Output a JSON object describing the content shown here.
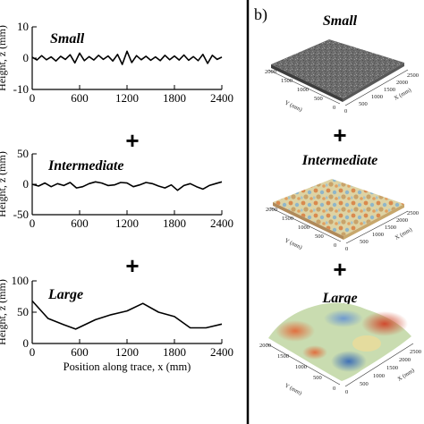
{
  "panel_label": "b)",
  "operator": "+",
  "chart_data": [
    {
      "type": "line",
      "title": "Small",
      "xlabel": "",
      "ylabel": "Height, z (mm)",
      "xlim": [
        0,
        2400
      ],
      "ylim": [
        -10,
        10
      ],
      "xticks": [
        "0",
        "600",
        "1200",
        "1800",
        "2400"
      ],
      "yticks": [
        "-10",
        "0",
        "10"
      ],
      "x": [
        0,
        60,
        120,
        180,
        240,
        300,
        360,
        420,
        480,
        540,
        600,
        660,
        720,
        780,
        840,
        900,
        960,
        1020,
        1080,
        1140,
        1200,
        1260,
        1320,
        1380,
        1440,
        1500,
        1560,
        1620,
        1680,
        1740,
        1800,
        1860,
        1920,
        1980,
        2040,
        2100,
        2160,
        2220,
        2280,
        2340,
        2400
      ],
      "y": [
        0.3,
        -0.6,
        0.8,
        -0.5,
        0.4,
        -0.9,
        0.6,
        -0.4,
        1.1,
        -1.5,
        1.6,
        -0.8,
        0.5,
        -0.6,
        0.9,
        -0.4,
        0.7,
        -0.9,
        1.2,
        -2.0,
        2.2,
        -1.4,
        0.8,
        -0.5,
        0.6,
        -0.7,
        0.4,
        -0.8,
        0.9,
        -0.5,
        0.7,
        -0.6,
        1.0,
        -0.7,
        0.5,
        -0.8,
        1.2,
        -1.7,
        0.9,
        -0.4,
        0.3
      ]
    },
    {
      "type": "line",
      "title": "Intermediate",
      "xlabel": "",
      "ylabel": "Height, z (mm)",
      "xlim": [
        0,
        2400
      ],
      "ylim": [
        -50,
        50
      ],
      "xticks": [
        "0",
        "600",
        "1200",
        "1800",
        "2400"
      ],
      "yticks": [
        "-50",
        "0",
        "50"
      ],
      "x": [
        0,
        80,
        160,
        240,
        320,
        400,
        480,
        560,
        640,
        720,
        800,
        880,
        960,
        1040,
        1120,
        1200,
        1280,
        1360,
        1440,
        1520,
        1600,
        1680,
        1760,
        1840,
        1920,
        2000,
        2080,
        2160,
        2240,
        2320,
        2400
      ],
      "y": [
        0,
        -3,
        2,
        -4,
        1,
        -2,
        3,
        -6,
        -4,
        1,
        4,
        2,
        -2,
        -1,
        3,
        2,
        -4,
        -1,
        3,
        1,
        -3,
        -6,
        -1,
        -10,
        -2,
        1,
        -4,
        -8,
        -2,
        1,
        4
      ]
    },
    {
      "type": "line",
      "title": "Large",
      "xlabel": "Position along trace, x (mm)",
      "ylabel": "Height, z (mm)",
      "xlim": [
        0,
        2400
      ],
      "ylim": [
        0,
        100
      ],
      "xticks": [
        "0",
        "600",
        "1200",
        "1800",
        "2400"
      ],
      "yticks": [
        "0",
        "50",
        "100"
      ],
      "x": [
        0,
        200,
        400,
        550,
        800,
        1000,
        1200,
        1400,
        1600,
        1800,
        2000,
        2200,
        2400
      ],
      "y": [
        68,
        40,
        30,
        23,
        38,
        46,
        52,
        64,
        50,
        43,
        25,
        25,
        31
      ]
    },
    {
      "type": "surface",
      "title": "Small",
      "xlabel": "X (mm)",
      "ylabel": "Y (mm)",
      "axis_ticks": [
        "0",
        "500",
        "1000",
        "1500",
        "2000",
        "2500"
      ],
      "color": "#6f6f6f"
    },
    {
      "type": "surface",
      "title": "Intermediate",
      "xlabel": "X (mm)",
      "ylabel": "Y (mm)",
      "axis_ticks": [
        "0",
        "500",
        "1000",
        "1500",
        "2000",
        "2500"
      ],
      "colors": [
        "#d98a4e",
        "#d9c58a",
        "#8fb6c9",
        "#e0d6a6"
      ]
    },
    {
      "type": "surface",
      "title": "Large",
      "xlabel": "X (mm)",
      "ylabel": "Y (mm)",
      "axis_ticks": [
        "0",
        "500",
        "1000",
        "1500",
        "2000",
        "2500"
      ],
      "colors": [
        "#3f70b6",
        "#bcd6b4",
        "#ecdc9a",
        "#d04a2e"
      ]
    }
  ]
}
